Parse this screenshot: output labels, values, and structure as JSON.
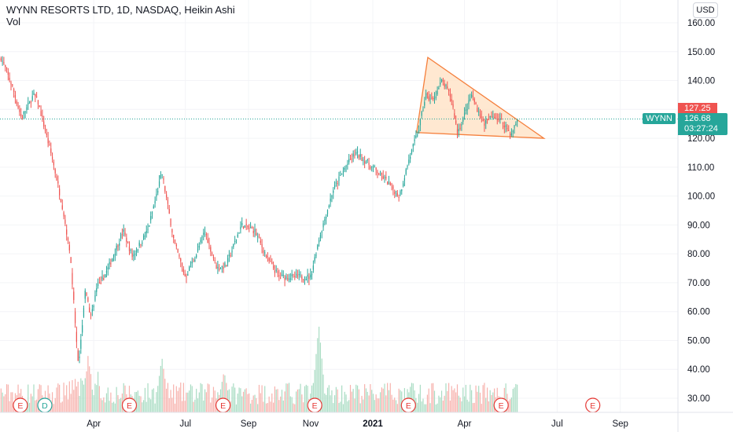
{
  "header": {
    "title": "WYNN RESORTS LTD, 1D, NASDAQ, Heikin Ashi",
    "volume_label": "Vol",
    "currency": "USD"
  },
  "price_tags": {
    "last_red": "127.25",
    "current": "126.68",
    "countdown": "03:27:24",
    "symbol": "WYNN"
  },
  "colors": {
    "up": "#26a69a",
    "down": "#ef5350",
    "vol_up": "#a9dcc3",
    "vol_down": "#f7b2ad",
    "triangle_fill": "#ffe0c2",
    "triangle_stroke": "#f57f3c",
    "event_red": "#e53935",
    "event_green": "#26a69a"
  },
  "chart_data": {
    "type": "candlestick",
    "y_ticks": [
      "160.00",
      "150.00",
      "140.00",
      "130.00",
      "120.00",
      "110.00",
      "100.00",
      "90.00",
      "80.00",
      "70.00",
      "60.00",
      "50.00",
      "40.00",
      "30.00"
    ],
    "x_ticks": [
      "Apr",
      "Jul",
      "Sep",
      "Nov",
      "2021",
      "Apr",
      "Jul",
      "Sep"
    ],
    "ylim": [
      25,
      165
    ],
    "price_line": 126.68,
    "price_anchors": [
      {
        "date": "2020-01-02",
        "price": 148
      },
      {
        "date": "2020-01-13",
        "price": 138
      },
      {
        "date": "2020-01-22",
        "price": 127
      },
      {
        "date": "2020-02-03",
        "price": 135
      },
      {
        "date": "2020-02-07",
        "price": 133
      },
      {
        "date": "2020-02-22",
        "price": 112
      },
      {
        "date": "2020-03-02",
        "price": 97
      },
      {
        "date": "2020-03-10",
        "price": 80
      },
      {
        "date": "2020-03-18",
        "price": 40
      },
      {
        "date": "2020-03-25",
        "price": 68
      },
      {
        "date": "2020-03-30",
        "price": 58
      },
      {
        "date": "2020-04-05",
        "price": 68
      },
      {
        "date": "2020-04-15",
        "price": 74
      },
      {
        "date": "2020-05-01",
        "price": 88
      },
      {
        "date": "2020-05-10",
        "price": 79
      },
      {
        "date": "2020-05-25",
        "price": 88
      },
      {
        "date": "2020-06-08",
        "price": 108
      },
      {
        "date": "2020-06-20",
        "price": 84
      },
      {
        "date": "2020-07-01",
        "price": 72
      },
      {
        "date": "2020-07-12",
        "price": 80
      },
      {
        "date": "2020-07-20",
        "price": 88
      },
      {
        "date": "2020-08-01",
        "price": 75
      },
      {
        "date": "2020-08-10",
        "price": 76
      },
      {
        "date": "2020-08-25",
        "price": 90
      },
      {
        "date": "2020-09-07",
        "price": 88
      },
      {
        "date": "2020-09-20",
        "price": 78
      },
      {
        "date": "2020-10-01",
        "price": 72
      },
      {
        "date": "2020-10-20",
        "price": 72
      },
      {
        "date": "2020-11-01",
        "price": 72
      },
      {
        "date": "2020-11-09",
        "price": 85
      },
      {
        "date": "2020-11-23",
        "price": 102
      },
      {
        "date": "2020-12-05",
        "price": 110
      },
      {
        "date": "2020-12-15",
        "price": 115
      },
      {
        "date": "2020-12-25",
        "price": 112
      },
      {
        "date": "2021-01-10",
        "price": 107
      },
      {
        "date": "2021-01-27",
        "price": 100
      },
      {
        "date": "2021-02-05",
        "price": 112
      },
      {
        "date": "2021-02-15",
        "price": 123
      },
      {
        "date": "2021-02-22",
        "price": 135
      },
      {
        "date": "2021-03-01",
        "price": 133
      },
      {
        "date": "2021-03-10",
        "price": 140
      },
      {
        "date": "2021-03-19",
        "price": 134
      },
      {
        "date": "2021-03-25",
        "price": 122
      },
      {
        "date": "2021-04-02",
        "price": 129
      },
      {
        "date": "2021-04-08",
        "price": 135
      },
      {
        "date": "2021-04-20",
        "price": 125
      },
      {
        "date": "2021-04-30",
        "price": 128
      },
      {
        "date": "2021-05-10",
        "price": 125
      },
      {
        "date": "2021-05-17",
        "price": 121
      },
      {
        "date": "2021-05-23",
        "price": 126.7
      }
    ],
    "triangle": [
      {
        "date": "2021-02-13",
        "price": 122
      },
      {
        "date": "2021-02-24",
        "price": 148
      },
      {
        "date": "2021-06-18",
        "price": 120
      }
    ],
    "events": [
      {
        "date": "2020-01-21",
        "label": "E",
        "kind": "earnings"
      },
      {
        "date": "2020-02-14",
        "label": "D",
        "kind": "dividend"
      },
      {
        "date": "2020-05-07",
        "label": "E",
        "kind": "earnings"
      },
      {
        "date": "2020-08-07",
        "label": "E",
        "kind": "earnings"
      },
      {
        "date": "2020-11-05",
        "label": "E",
        "kind": "earnings"
      },
      {
        "date": "2021-02-05",
        "label": "E",
        "kind": "earnings"
      },
      {
        "date": "2021-05-07",
        "label": "E",
        "kind": "earnings"
      },
      {
        "date": "2021-08-05",
        "label": "E",
        "kind": "earnings"
      }
    ],
    "volume_spikes": [
      {
        "date": "2020-03-27",
        "scale": 0.85
      },
      {
        "date": "2020-06-08",
        "scale": 1.0
      },
      {
        "date": "2020-08-08",
        "scale": 0.75
      },
      {
        "date": "2020-11-09",
        "scale": 1.6
      },
      {
        "date": "2021-02-08",
        "scale": 0.55
      }
    ]
  }
}
